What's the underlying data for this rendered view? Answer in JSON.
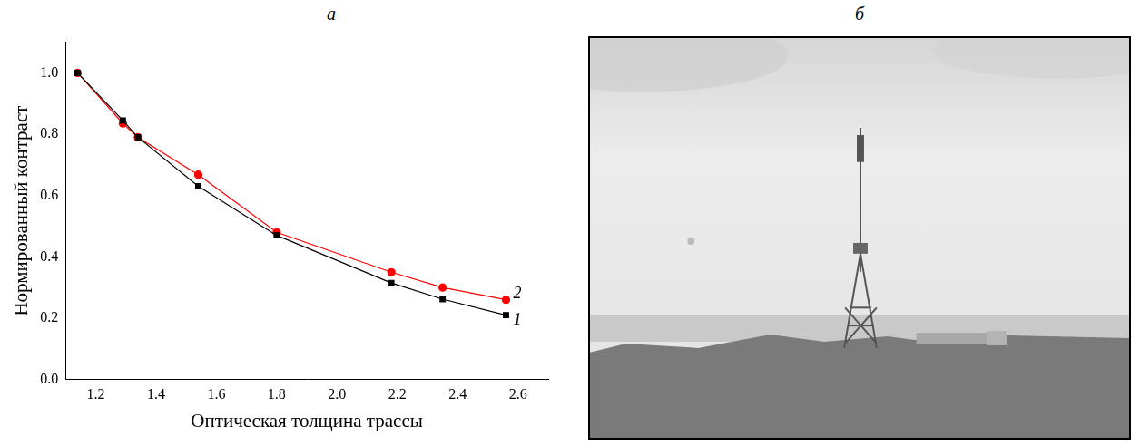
{
  "panel_labels": [
    "а",
    "б"
  ],
  "chart_data": {
    "type": "line",
    "x_label": "Оптическая толщина трассы",
    "y_label": "Нормированный контраст",
    "x": [
      1.14,
      1.29,
      1.34,
      1.54,
      1.8,
      2.18,
      2.35,
      2.56
    ],
    "series": [
      {
        "name": "1",
        "color": "#000000",
        "marker": "square",
        "values": [
          1.0,
          0.845,
          0.79,
          0.63,
          0.47,
          0.315,
          0.262,
          0.21
        ]
      },
      {
        "name": "2",
        "color": "#ff0000",
        "marker": "circle",
        "values": [
          1.0,
          0.835,
          0.79,
          0.668,
          0.48,
          0.35,
          0.3,
          0.26
        ]
      }
    ],
    "xlim": [
      1.1,
      2.7
    ],
    "xticks": [
      1.2,
      1.4,
      1.6,
      1.8,
      {
        "value": 2,
        "label": "2.0"
      },
      2.2,
      2.4,
      2.6
    ],
    "ylim": [
      0,
      1.1
    ],
    "yticks": [
      {
        "value": 0,
        "label": "0.0"
      },
      0.2,
      0.4,
      0.6,
      0.8,
      {
        "value": 1,
        "label": "1.0"
      }
    ],
    "grid": false
  }
}
